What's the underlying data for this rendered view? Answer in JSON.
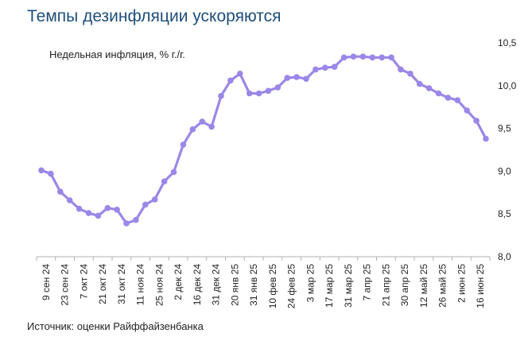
{
  "title": "Темпы дезинфляции ускоряются",
  "source": "Источник: оценки Райффайзенбанка",
  "chart_data": {
    "type": "line",
    "subtitle": "Недельная инфляция, % г./г.",
    "y_axis_position": "right",
    "ylim": [
      8.0,
      10.5
    ],
    "yticks": [
      "8,0",
      "8,5",
      "9,0",
      "9,5",
      "10,0",
      "10,5"
    ],
    "ytick_values": [
      8.0,
      8.5,
      9.0,
      9.5,
      10.0,
      10.5
    ],
    "grid": false,
    "line_color": "#9b87e8",
    "xtick_labels": [
      "9 сен 24",
      "23 сен 24",
      "7 окт 24",
      "21 окт 24",
      "31 окт 24",
      "11 ноя 24",
      "25 ноя 24",
      "2 дек 24",
      "16 дек 24",
      "31 дек 24",
      "20 янв 25",
      "31 янв 25",
      "10 фев 25",
      "24 фев 25",
      "3 мар 25",
      "17 мар 25",
      "31 мар 25",
      "7 апр 25",
      "21 апр 25",
      "30 апр 25",
      "12 май 25",
      "26 май 25",
      "2 июн 25",
      "16 июн 25"
    ],
    "values": [
      9.01,
      8.97,
      8.76,
      8.66,
      8.56,
      8.51,
      8.48,
      8.57,
      8.55,
      8.39,
      8.43,
      8.61,
      8.67,
      8.88,
      8.99,
      9.31,
      9.49,
      9.58,
      9.52,
      9.88,
      10.06,
      10.14,
      9.91,
      9.91,
      9.94,
      9.98,
      10.09,
      10.1,
      10.08,
      10.19,
      10.21,
      10.22,
      10.33,
      10.34,
      10.34,
      10.33,
      10.33,
      10.33,
      10.19,
      10.14,
      10.02,
      9.97,
      9.91,
      9.86,
      9.83,
      9.71,
      9.59,
      9.38
    ]
  }
}
